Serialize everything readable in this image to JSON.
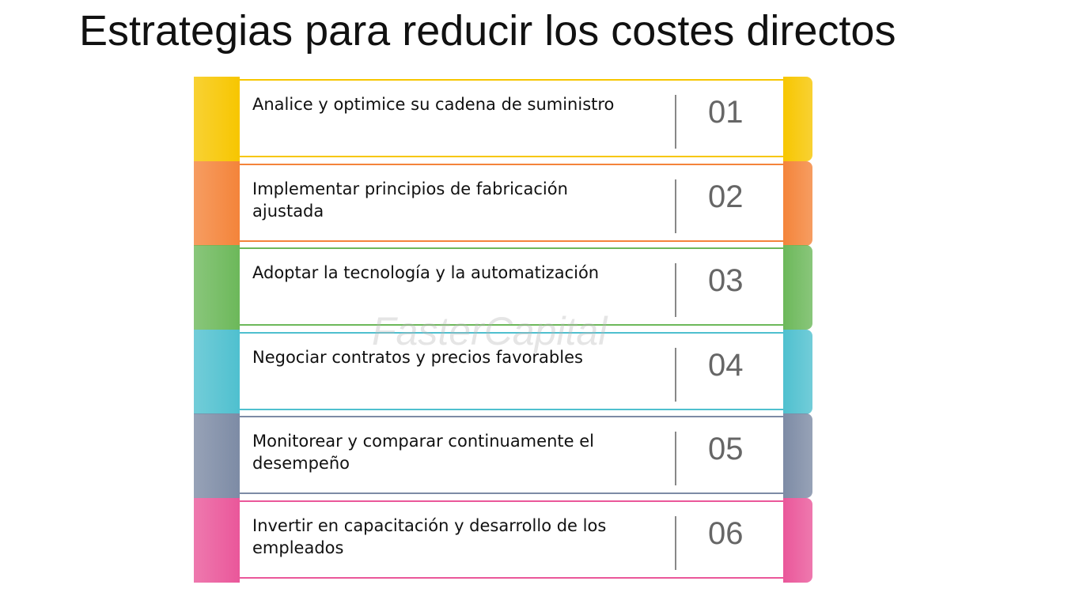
{
  "title": "Estrategias para reducir los costes directos",
  "watermark": "FasterCapital",
  "items": [
    {
      "text": "Analice y optimice su cadena de suministro",
      "number": "01",
      "color": "#f7c600"
    },
    {
      "text": "Implementar principios de fabricación ajustada",
      "number": "02",
      "color": "#f4843a"
    },
    {
      "text": "Adoptar la tecnología y la automatización",
      "number": "03",
      "color": "#6cb85a"
    },
    {
      "text": "Negociar contratos y precios favorables",
      "number": "04",
      "color": "#4fc0cf"
    },
    {
      "text": "Monitorear y comparar continuamente el desempeño",
      "number": "05",
      "color": "#7d8ba5"
    },
    {
      "text": "Invertir en capacitación y desarrollo de los empleados",
      "number": "06",
      "color": "#ea579a"
    }
  ]
}
